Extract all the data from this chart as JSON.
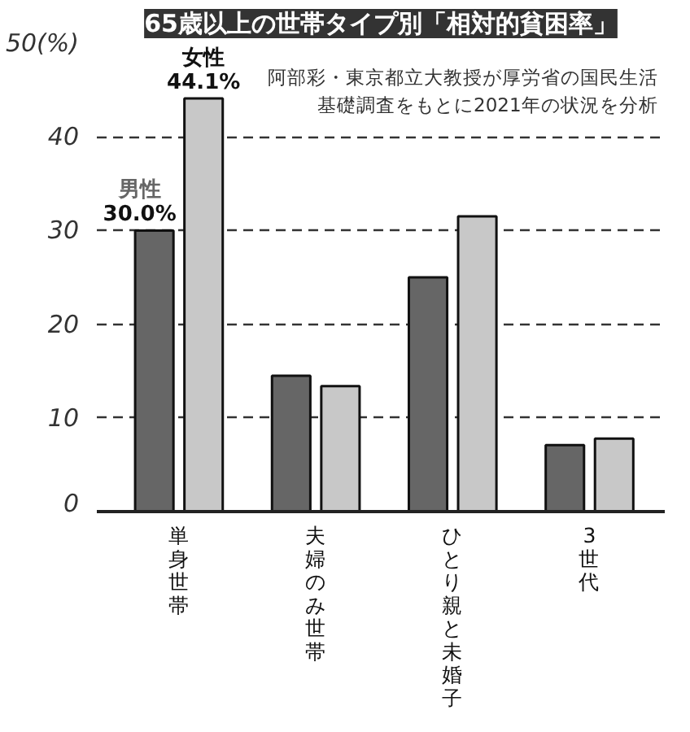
{
  "chart_data": {
    "type": "bar",
    "title": "65歳以上の世帯タイプ別「相対的貧困率」",
    "categories": [
      "単身世帯",
      "夫婦のみ世帯",
      "ひとり親と未婚子",
      "3世代"
    ],
    "series": [
      {
        "name": "男性",
        "color": "#666666",
        "values": [
          30.0,
          14.5,
          25.0,
          7.1
        ],
        "value_labels": [
          "30.0%",
          null,
          null,
          null
        ]
      },
      {
        "name": "女性",
        "color": "#c8c8c8",
        "values": [
          44.1,
          13.4,
          31.5,
          7.8
        ],
        "value_labels": [
          "44.1%",
          null,
          null,
          null
        ]
      }
    ],
    "ylim": [
      0,
      50
    ],
    "yticks": [
      0,
      10,
      20,
      30,
      40,
      {
        "value": 50,
        "label": "50(%)"
      }
    ],
    "grid": "y",
    "annotations": [
      "阿部彩・東京都立大教授が厚労省の国民生活基礎調査をもとに2021年の状況を分析"
    ]
  }
}
